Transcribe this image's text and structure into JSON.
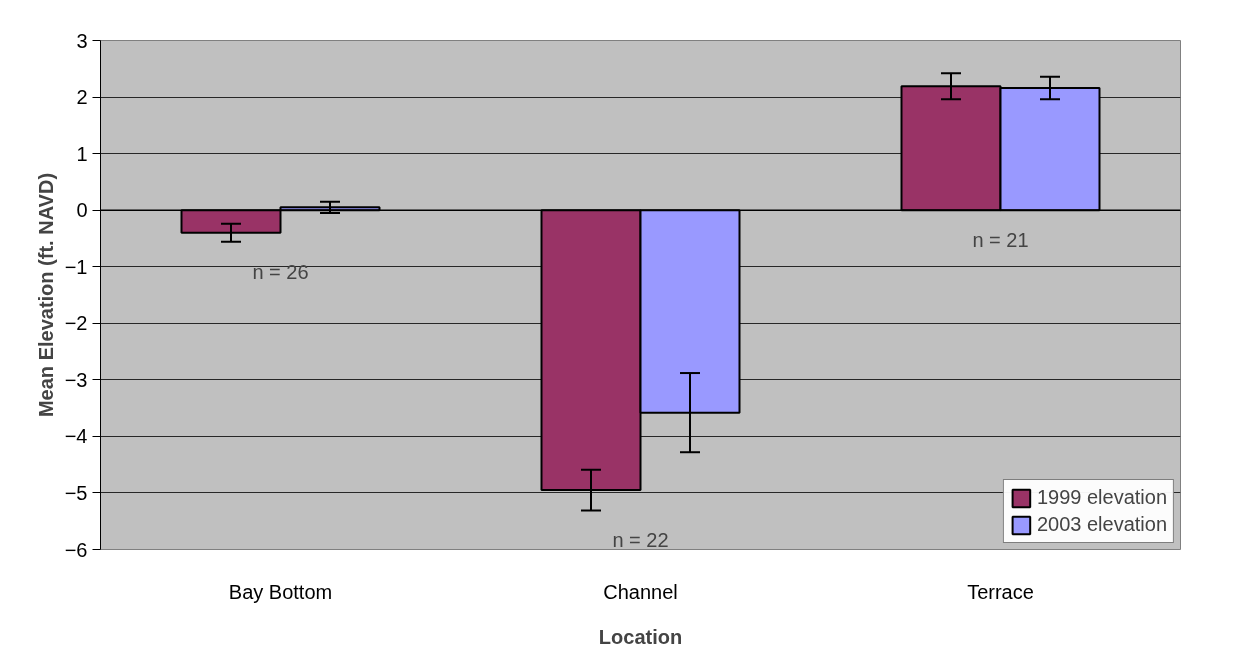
{
  "chart_data": {
    "type": "bar",
    "xlabel": "Location",
    "ylabel": "Mean Elevation (ft. NAVD)",
    "categories": [
      "Bay Bottom",
      "Channel",
      "Terrace"
    ],
    "series": [
      {
        "name": "1999 elevation",
        "color": "#993366",
        "values": [
          -0.4,
          -4.95,
          2.19
        ],
        "errors": [
          0.16,
          0.36,
          0.23
        ]
      },
      {
        "name": "2003 elevation",
        "color": "#9999ff",
        "values": [
          0.05,
          -3.58,
          2.16
        ],
        "errors": [
          0.1,
          0.7,
          0.2
        ]
      }
    ],
    "ylim": [
      -6,
      3
    ],
    "yticks": [
      -6,
      -5,
      -4,
      -3,
      -2,
      -1,
      0,
      1,
      2,
      3
    ],
    "grid": "y",
    "legend": "bottom right",
    "annotations": [
      "n = 26",
      "n = 22",
      "n = 21"
    ]
  }
}
